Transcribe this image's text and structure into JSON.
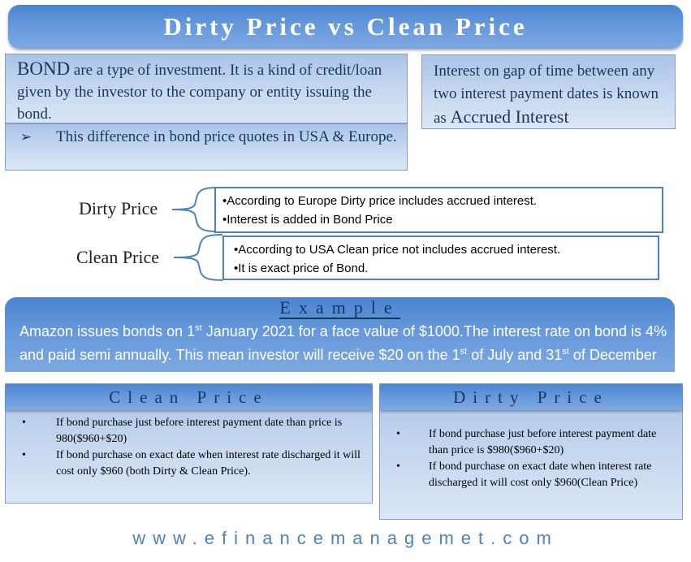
{
  "title": "Dirty Price vs Clean Price",
  "bond_intro": {
    "lead": "BOND",
    "text": " are a type of investment. It is a kind of credit/loan given by the investor to the company or entity issuing the bond."
  },
  "difference_note": {
    "bullet": "➢",
    "text": "This difference in bond price quotes in USA & Europe."
  },
  "accrued_interest": {
    "text": "Interest on gap of time between any two interest payment dates is known as ",
    "term": "Accrued Interest"
  },
  "dirty_price_def": {
    "label": "Dirty Price",
    "points": [
      "•According to Europe Dirty price includes accrued interest.",
      "•Interest is added in Bond Price"
    ]
  },
  "clean_price_def": {
    "label": "Clean Price",
    "points": [
      "•According to USA Clean price not includes accrued interest.",
      "•It is exact price of Bond."
    ]
  },
  "example": {
    "title": "Example",
    "t1": "Amazon issues bonds on 1",
    "s1": "st",
    "t2": " January 2021 for a face value of $1000.The interest rate on bond is 4% and paid semi annually. This  mean investor will receive $20 on  the 1",
    "s2": "st",
    "t3": " of July and 31",
    "s3": "st",
    "t4": " of December every year."
  },
  "clean_panel": {
    "title": "Clean Price",
    "bullet": "•",
    "points": [
      "If bond purchase just before interest payment date than price is 980($960+$20)",
      "If bond purchase on exact date when interest rate discharged it will cost only $960 (both Dirty & Clean Price)."
    ]
  },
  "dirty_panel": {
    "title": "Dirty Price",
    "bullet": "•",
    "points": [
      "If bond purchase just before interest payment date than price is $980($960+$20)",
      "If bond purchase on exact date when interest rate discharged it will cost only $960(Clean Price)"
    ]
  },
  "website": "www.efinancemanagemet.com"
}
